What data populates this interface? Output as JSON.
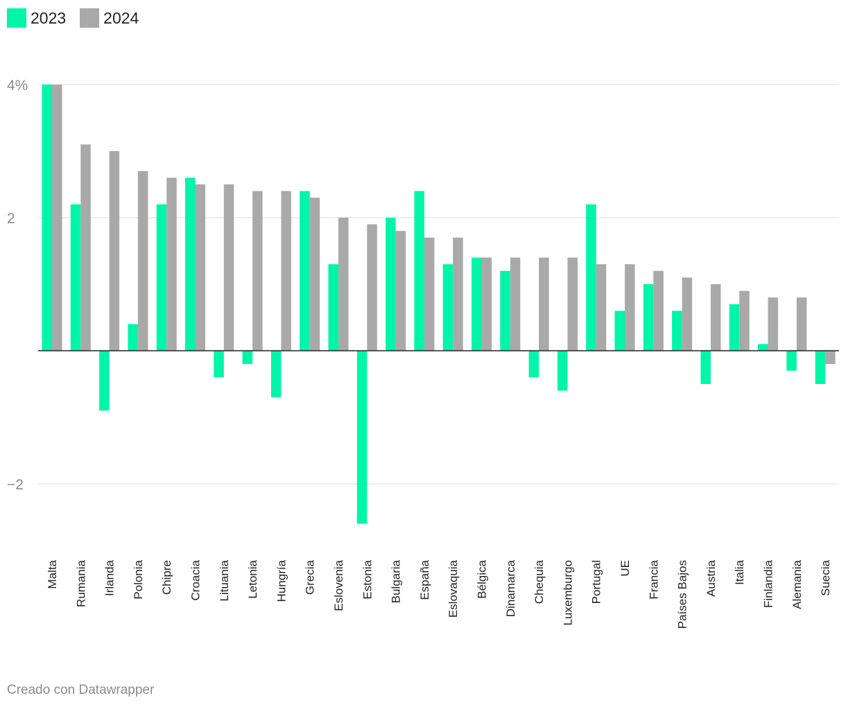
{
  "legend": [
    {
      "label": "2023",
      "color": "#00f5a9"
    },
    {
      "label": "2024",
      "color": "#a9a9a9"
    }
  ],
  "footer": "Creado con Datawrapper",
  "chart_data": {
    "type": "bar",
    "title": "",
    "xlabel": "",
    "ylabel": "",
    "ylim": [
      -3,
      4
    ],
    "grid": true,
    "legend_position": "top-left",
    "y_ticks": [
      {
        "value": 4,
        "label": "4%"
      },
      {
        "value": 2,
        "label": "2"
      },
      {
        "value": -2,
        "label": "−2"
      }
    ],
    "categories": [
      "Malta",
      "Rumania",
      "Irlanda",
      "Polonia",
      "Chipre",
      "Croacia",
      "Lituania",
      "Letonia",
      "Hungría",
      "Grecia",
      "Eslovenia",
      "Estonia",
      "Bulgaria",
      "España",
      "Eslovaquia",
      "Bélgica",
      "Dinamarca",
      "Chequia",
      "Luxemburgo",
      "Portugal",
      "UE",
      "Francia",
      "Países Bajos",
      "Austria",
      "Italia",
      "Finlandia",
      "Alemania",
      "Suecia"
    ],
    "series": [
      {
        "name": "2023",
        "color": "#00f5a9",
        "values": [
          4.0,
          2.2,
          -0.9,
          0.4,
          2.2,
          2.6,
          -0.4,
          -0.2,
          -0.7,
          2.4,
          1.3,
          -2.6,
          2.0,
          2.4,
          1.3,
          1.4,
          1.2,
          -0.4,
          -0.6,
          2.2,
          0.6,
          1.0,
          0.6,
          -0.5,
          0.7,
          0.1,
          -0.3,
          -0.5
        ]
      },
      {
        "name": "2024",
        "color": "#a9a9a9",
        "values": [
          4.0,
          3.1,
          3.0,
          2.7,
          2.6,
          2.5,
          2.5,
          2.4,
          2.4,
          2.3,
          2.0,
          1.9,
          1.8,
          1.7,
          1.7,
          1.4,
          1.4,
          1.4,
          1.4,
          1.3,
          1.3,
          1.2,
          1.1,
          1.0,
          0.9,
          0.8,
          0.8,
          -0.2
        ]
      }
    ]
  }
}
